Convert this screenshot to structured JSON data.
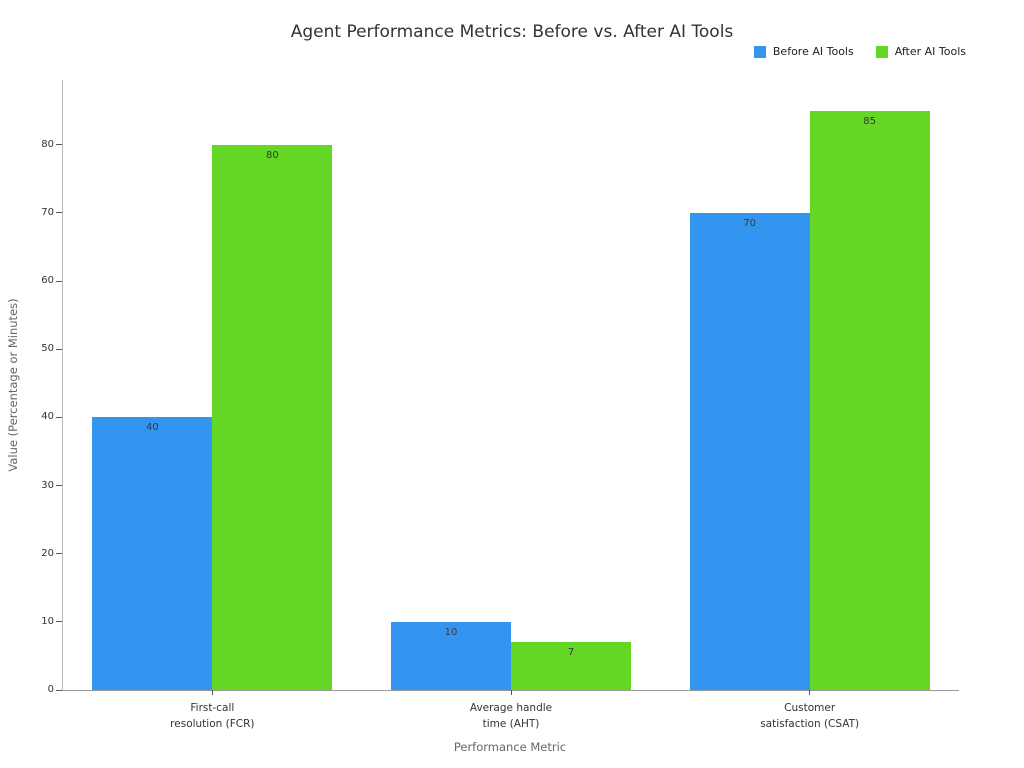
{
  "title": "Agent Performance Metrics: Before vs. After AI Tools",
  "colors": {
    "before": "#3495f0",
    "after": "#63d723"
  },
  "chart_data": {
    "type": "bar",
    "title": "Agent Performance Metrics: Before vs. After AI Tools",
    "categories": [
      "First-call\nresolution (FCR)",
      "Average handle\ntime (AHT)",
      "Customer\nsatisfaction (CSAT)"
    ],
    "series": [
      {
        "name": "Before AI Tools",
        "color": "#3495f0",
        "values": [
          40,
          10,
          70
        ]
      },
      {
        "name": "After AI Tools",
        "color": "#63d723",
        "values": [
          80,
          7,
          85
        ]
      }
    ],
    "xlabel": "Performance Metric",
    "ylabel": "Value (Percentage or Minutes)",
    "ylim": [
      0,
      89.5
    ],
    "yticks": [
      0,
      10,
      20,
      30,
      40,
      50,
      60,
      70,
      80
    ],
    "grid": false,
    "legend_position": "top-right",
    "bar_labels": true
  }
}
